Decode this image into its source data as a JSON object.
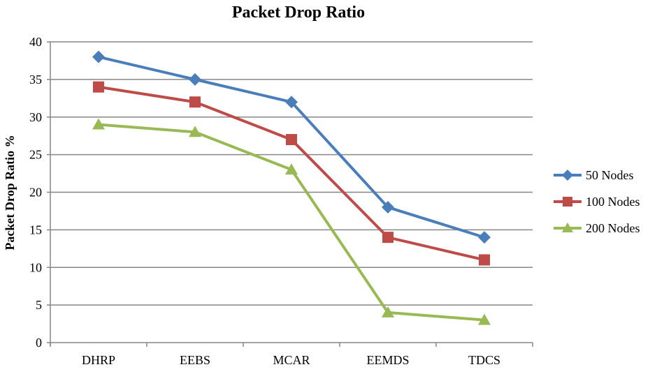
{
  "chart_data": {
    "type": "line",
    "title": "Packet Drop Ratio",
    "xlabel": "",
    "ylabel": "Packet Drop Ratio %",
    "categories": [
      "DHRP",
      "EEBS",
      "MCAR",
      "EEMDS",
      "TDCS"
    ],
    "ylim": [
      0,
      40
    ],
    "yticks": [
      0,
      5,
      10,
      15,
      20,
      25,
      30,
      35,
      40
    ],
    "grid": true,
    "legend_position": "right",
    "series": [
      {
        "name": "50 Nodes",
        "values": [
          38,
          35,
          32,
          18,
          14
        ],
        "color": "#4a7ebb",
        "marker": "diamond"
      },
      {
        "name": "100 Nodes",
        "values": [
          34,
          32,
          27,
          14,
          11
        ],
        "color": "#be4b48",
        "marker": "square"
      },
      {
        "name": "200 Nodes",
        "values": [
          29,
          28,
          23,
          4,
          3
        ],
        "color": "#98b954",
        "marker": "triangle"
      }
    ]
  }
}
